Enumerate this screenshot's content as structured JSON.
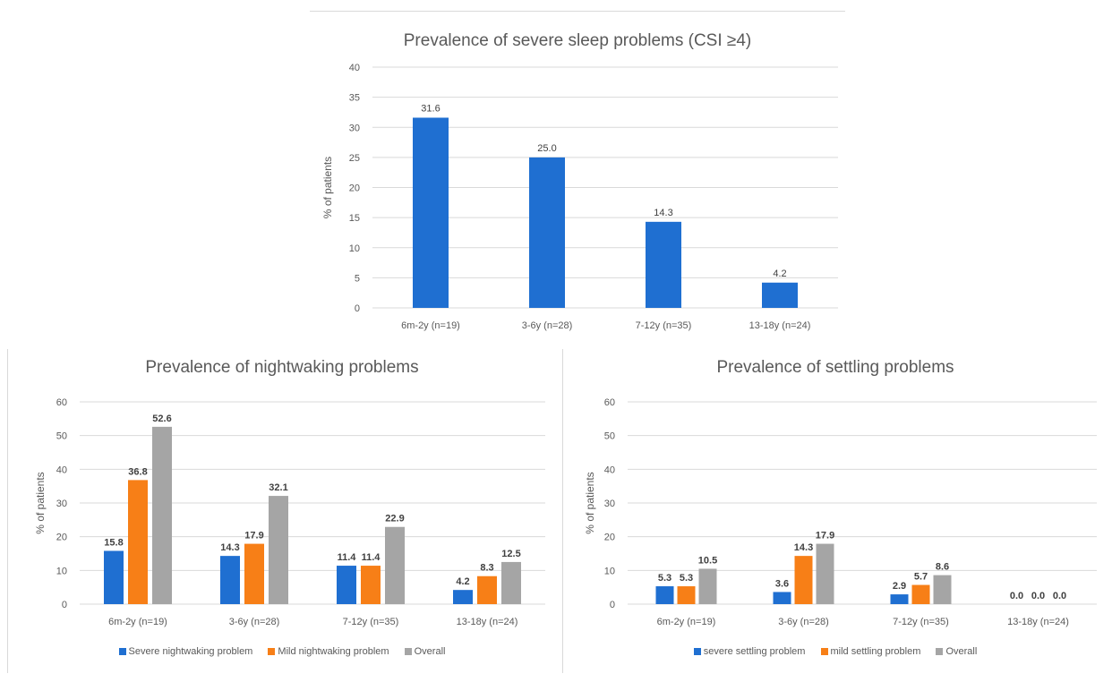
{
  "chart_data": [
    {
      "id": "severe",
      "type": "bar",
      "title": "Prevalence of severe sleep problems (CSI ≥4)",
      "ylabel": "% of patients",
      "xlabel": "",
      "ylim": [
        0,
        40
      ],
      "yticks": [
        0,
        5,
        10,
        15,
        20,
        25,
        30,
        35,
        40
      ],
      "grid": true,
      "categories": [
        "6m-2y (n=19)",
        "3-6y (n=28)",
        "7-12y (n=35)",
        "13-18y (n=24)"
      ],
      "series": [
        {
          "color": "#1f6fd1",
          "values": [
            31.6,
            25.0,
            14.3,
            4.2
          ],
          "labels": [
            "31.6",
            "25.0",
            "14.3",
            "4.2"
          ]
        }
      ]
    },
    {
      "id": "nightwaking",
      "type": "bar",
      "title": "Prevalence of nightwaking problems",
      "ylabel": "% of patients",
      "xlabel": "",
      "ylim": [
        0,
        60
      ],
      "yticks": [
        0,
        10,
        20,
        30,
        40,
        50,
        60
      ],
      "grid": true,
      "legend": "bottom",
      "categories": [
        "6m-2y (n=19)",
        "3-6y (n=28)",
        "7-12y (n=35)",
        "13-18y (n=24)"
      ],
      "series": [
        {
          "name": "Severe nightwaking problem",
          "color": "#1f6fd1",
          "values": [
            15.8,
            14.3,
            11.4,
            4.2
          ],
          "labels": [
            "15.8",
            "14.3",
            "11.4",
            "4.2"
          ]
        },
        {
          "name": "Mild nightwaking problem",
          "color": "#f77f17",
          "values": [
            36.8,
            17.9,
            11.4,
            8.3
          ],
          "labels": [
            "36.8",
            "17.9",
            "11.4",
            "8.3"
          ]
        },
        {
          "name": "Overall",
          "color": "#a5a5a5",
          "values": [
            52.6,
            32.1,
            22.9,
            12.5
          ],
          "labels": [
            "52.6",
            "32.1",
            "22.9",
            "12.5"
          ]
        }
      ]
    },
    {
      "id": "settling",
      "type": "bar",
      "title": "Prevalence of settling problems",
      "ylabel": "% of patients",
      "xlabel": "",
      "ylim": [
        0,
        60
      ],
      "yticks": [
        0,
        10,
        20,
        30,
        40,
        50,
        60
      ],
      "grid": true,
      "legend": "bottom",
      "categories": [
        "6m-2y (n=19)",
        "3-6y (n=28)",
        "7-12y (n=35)",
        "13-18y (n=24)"
      ],
      "series": [
        {
          "name": "severe settling problem",
          "color": "#1f6fd1",
          "values": [
            5.3,
            3.6,
            2.9,
            0.0
          ],
          "labels": [
            "5.3",
            "3.6",
            "2.9",
            "0.0"
          ]
        },
        {
          "name": "mild settling problem",
          "color": "#f77f17",
          "values": [
            5.3,
            14.3,
            5.7,
            0.0
          ],
          "labels": [
            "5.3",
            "14.3",
            "5.7",
            "0.0"
          ]
        },
        {
          "name": "Overall",
          "color": "#a5a5a5",
          "values": [
            10.5,
            17.9,
            8.6,
            0.0
          ],
          "labels": [
            "10.5",
            "17.9",
            "8.6",
            "0.0"
          ]
        }
      ]
    }
  ]
}
